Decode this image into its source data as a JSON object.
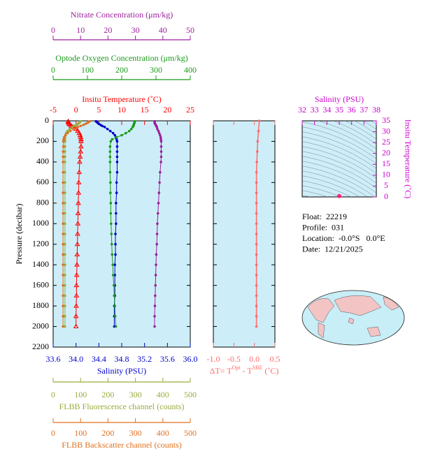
{
  "chart_data": [
    {
      "type": "line",
      "y_label": "Pressure (decibar)",
      "ylim": [
        2200,
        0
      ],
      "yticks": [
        0,
        200,
        400,
        600,
        800,
        1000,
        1200,
        1400,
        1600,
        1800,
        2000,
        2200
      ],
      "pressure": [
        5,
        10,
        20,
        30,
        40,
        50,
        60,
        80,
        100,
        120,
        140,
        160,
        180,
        200,
        250,
        300,
        350,
        400,
        500,
        600,
        700,
        800,
        900,
        1000,
        1100,
        1200,
        1300,
        1400,
        1500,
        1600,
        1700,
        1800,
        1900,
        2000
      ],
      "background": "#cdeef8",
      "series": [
        {
          "name": "Insitu Temperature (˚C)",
          "color": "#ff0000",
          "marker": "triangle",
          "xlim": [
            -5,
            25
          ],
          "xticks": [
            -5,
            0,
            5,
            10,
            15,
            20,
            25
          ],
          "values": [
            -1.7,
            -1.7,
            -1.6,
            -1.5,
            -1.3,
            -1.0,
            -0.6,
            0.0,
            0.4,
            0.7,
            0.9,
            1.0,
            1.1,
            1.1,
            1.1,
            1.0,
            0.9,
            0.8,
            0.7,
            0.6,
            0.55,
            0.5,
            0.45,
            0.4,
            0.35,
            0.3,
            0.25,
            0.2,
            0.15,
            0.1,
            0.1,
            0.05,
            0.0,
            0.0
          ]
        },
        {
          "name": "Salinity (PSU)",
          "color": "#0000cc",
          "marker": "circle",
          "xlim": [
            33.6,
            36.0
          ],
          "xticks": [
            33.6,
            {
              "value": 34,
              "label": "34.0"
            },
            34.4,
            34.8,
            35.2,
            35.6,
            {
              "value": 36,
              "label": "36.0"
            }
          ],
          "values": [
            34.35,
            34.36,
            34.38,
            34.4,
            34.43,
            34.46,
            34.5,
            34.55,
            34.6,
            34.65,
            34.68,
            34.7,
            34.71,
            34.72,
            34.72,
            34.72,
            34.72,
            34.72,
            34.72,
            34.71,
            34.71,
            34.7,
            34.7,
            34.7,
            34.69,
            34.69,
            34.69,
            34.68,
            34.68,
            34.68,
            34.68,
            34.67,
            34.67,
            34.67
          ]
        },
        {
          "name": "Optode Oxygen Concentration (μm/kg)",
          "color": "#1a9a1a",
          "marker": "circle",
          "xlim": [
            0,
            400
          ],
          "xticks": [
            0,
            100,
            200,
            300,
            400
          ],
          "values": [
            238,
            238,
            237,
            236,
            235,
            234,
            232,
            228,
            222,
            212,
            200,
            185,
            172,
            168,
            166,
            166,
            166,
            166,
            166,
            167,
            167,
            168,
            168,
            169,
            170,
            171,
            172,
            174,
            175,
            177,
            178,
            180,
            181,
            183
          ]
        },
        {
          "name": "Nitrate Concentration (μm/kg)",
          "color": "#9b1f9b",
          "marker": "circle",
          "xlim": [
            0,
            50
          ],
          "xticks": [
            0,
            10,
            20,
            30,
            40,
            50
          ],
          "values": [
            37,
            37,
            37,
            37.2,
            37.4,
            37.6,
            37.8,
            38,
            38.4,
            38.7,
            39,
            39.2,
            39.3,
            39.4,
            39.4,
            39.4,
            39.4,
            39.3,
            39,
            38.8,
            38.6,
            38.4,
            38.2,
            38,
            37.9,
            37.8,
            37.6,
            37.5,
            37.4,
            37.3,
            37.2,
            37.1,
            37.0,
            37.0
          ]
        },
        {
          "name": "FLBB Fluorescence channel (counts)",
          "color": "#9aab3a",
          "marker": "circle",
          "xlim": [
            0,
            500
          ],
          "xticks": [
            0,
            100,
            200,
            300,
            400,
            500
          ],
          "values": [
            100,
            98,
            95,
            90,
            85,
            78,
            70,
            60,
            52,
            47,
            44,
            43,
            43,
            43,
            43,
            43,
            43,
            43,
            43,
            43,
            43,
            43,
            43,
            43,
            43,
            43,
            43,
            43,
            43,
            43,
            43,
            43,
            43,
            43
          ]
        },
        {
          "name": "FLBB Backscatter channel (counts)",
          "color": "#e07020",
          "marker": "circle",
          "xlim": [
            0,
            500
          ],
          "xticks": [
            0,
            100,
            200,
            300,
            400,
            500
          ],
          "values": [
            133,
            130,
            125,
            118,
            110,
            100,
            90,
            75,
            62,
            52,
            45,
            40,
            38,
            37,
            37,
            36,
            36,
            36,
            36,
            36,
            36,
            36,
            36,
            36,
            36,
            36,
            36,
            36,
            36,
            36,
            36,
            36,
            36,
            36
          ]
        }
      ]
    },
    {
      "type": "line",
      "x_label": [
        "ΔT= T",
        "Opt",
        " - T",
        "SBE",
        " (˚C)"
      ],
      "color": "#ff6a6a",
      "background": "#cdeef8",
      "xlim": [
        -1,
        0.5
      ],
      "xticks": [
        {
          "value": -1,
          "label": "-1.0"
        },
        -0.5,
        {
          "value": 0,
          "label": "0.0"
        },
        0.5
      ],
      "ylim": [
        2200,
        0
      ],
      "yticks": [
        0,
        200,
        400,
        600,
        800,
        1000,
        1200,
        1400,
        1600,
        1800,
        2000,
        2200
      ],
      "y": [
        0,
        100,
        200,
        300,
        400,
        500,
        600,
        700,
        800,
        900,
        1000,
        1100,
        1200,
        1300,
        1400,
        1500,
        1600,
        1700,
        1800,
        1900,
        2000
      ],
      "values": [
        0.12,
        0.1,
        0.08,
        0.07,
        0.06,
        0.05,
        0.05,
        0.05,
        0.05,
        0.05,
        0.05,
        0.05,
        0.05,
        0.05,
        0.05,
        0.05,
        0.05,
        0.05,
        0.05,
        0.05,
        0.05
      ]
    },
    {
      "type": "scatter",
      "x_label": "Salinity (PSU)",
      "y_label": "Insitu Temperature (˚C)",
      "color": "#ff2080",
      "axis_color": "#cc00cc",
      "background": "#cdeef8",
      "xlim": [
        32,
        38
      ],
      "xticks": [
        32,
        33,
        34,
        35,
        36,
        37,
        38
      ],
      "ylim": [
        0,
        35
      ],
      "yticks": [
        0,
        5,
        10,
        15,
        20,
        25,
        30,
        35
      ],
      "x": [
        35
      ],
      "y": [
        0.4
      ]
    }
  ],
  "info": [
    "Float:  22219",
    "Profile:  031",
    "Location:  -0.0°S   0.0°E",
    "Date:  12/21/2025"
  ]
}
